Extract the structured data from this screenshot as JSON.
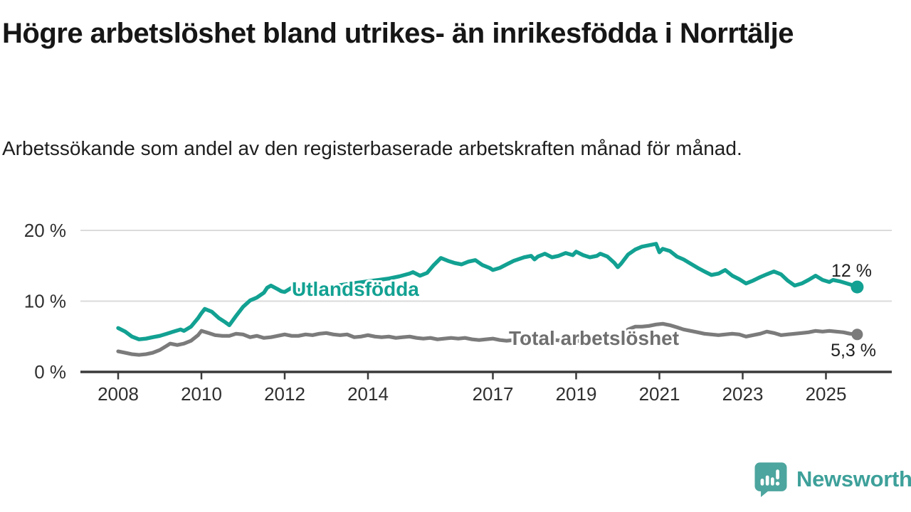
{
  "header": {
    "title": "Högre arbetslöshet bland utrikes- än inrikesfödda i Norrtälje",
    "subtitle": "Arbetssökande som andel av den registerbaserade arbetskraften månad för månad."
  },
  "branding": {
    "logo_text": "Newsworthy",
    "logo_icon": "bar-chart-speech-bubble-icon",
    "icon_color": "#4CA59E",
    "text_color": "#3EA09A"
  },
  "colors": {
    "grid": "#DBDBDB",
    "axis": "#3A3A3A",
    "axis_text": "#2F2F2F",
    "title_text": "#161616",
    "subtitle_text": "#1E1E1E"
  },
  "chart_data": {
    "type": "line",
    "x_ticks": [
      2008,
      2010,
      2012,
      2014,
      2017,
      2019,
      2021,
      2023,
      2025
    ],
    "y_ticks": [
      {
        "value": 0,
        "label": "0 %"
      },
      {
        "value": 10,
        "label": "10 %"
      },
      {
        "value": 20,
        "label": "20 %"
      }
    ],
    "ylim": [
      0,
      21
    ],
    "xlim": [
      2007.1,
      2026.6
    ],
    "grid": "horizontal-only",
    "legend_position": "inline-labels",
    "series": [
      {
        "name": "Utlandsfödda",
        "color": "#12A192",
        "label_color": "#12A192",
        "end_label": "12 %",
        "end_value": 12,
        "points": [
          [
            2008.0,
            6.2
          ],
          [
            2008.17,
            5.7
          ],
          [
            2008.33,
            5.0
          ],
          [
            2008.5,
            4.6
          ],
          [
            2008.67,
            4.7
          ],
          [
            2008.83,
            4.9
          ],
          [
            2009.0,
            5.1
          ],
          [
            2009.17,
            5.4
          ],
          [
            2009.33,
            5.7
          ],
          [
            2009.5,
            6.0
          ],
          [
            2009.58,
            5.8
          ],
          [
            2009.75,
            6.4
          ],
          [
            2009.92,
            7.6
          ],
          [
            2010.0,
            8.3
          ],
          [
            2010.08,
            8.9
          ],
          [
            2010.25,
            8.5
          ],
          [
            2010.42,
            7.6
          ],
          [
            2010.58,
            7.0
          ],
          [
            2010.67,
            6.6
          ],
          [
            2010.83,
            7.9
          ],
          [
            2011.0,
            9.2
          ],
          [
            2011.17,
            10.1
          ],
          [
            2011.33,
            10.5
          ],
          [
            2011.5,
            11.2
          ],
          [
            2011.58,
            11.9
          ],
          [
            2011.67,
            12.2
          ],
          [
            2011.83,
            11.7
          ],
          [
            2011.92,
            11.4
          ],
          [
            2012.0,
            11.3
          ],
          [
            2012.17,
            11.9
          ],
          [
            2012.33,
            11.6
          ],
          [
            2012.5,
            11.4
          ],
          [
            2012.75,
            11.7
          ],
          [
            2013.0,
            12.0
          ],
          [
            2013.25,
            12.2
          ],
          [
            2013.5,
            12.4
          ],
          [
            2013.75,
            12.6
          ],
          [
            2014.0,
            12.8
          ],
          [
            2014.25,
            13.0
          ],
          [
            2014.5,
            13.2
          ],
          [
            2014.75,
            13.5
          ],
          [
            2015.0,
            13.9
          ],
          [
            2015.08,
            14.1
          ],
          [
            2015.25,
            13.6
          ],
          [
            2015.42,
            14.0
          ],
          [
            2015.58,
            15.1
          ],
          [
            2015.75,
            16.1
          ],
          [
            2015.92,
            15.7
          ],
          [
            2016.08,
            15.4
          ],
          [
            2016.25,
            15.2
          ],
          [
            2016.42,
            15.6
          ],
          [
            2016.58,
            15.8
          ],
          [
            2016.75,
            15.1
          ],
          [
            2016.92,
            14.7
          ],
          [
            2017.0,
            14.4
          ],
          [
            2017.17,
            14.7
          ],
          [
            2017.33,
            15.2
          ],
          [
            2017.5,
            15.7
          ],
          [
            2017.75,
            16.2
          ],
          [
            2017.92,
            16.4
          ],
          [
            2018.0,
            15.9
          ],
          [
            2018.08,
            16.3
          ],
          [
            2018.25,
            16.7
          ],
          [
            2018.42,
            16.2
          ],
          [
            2018.58,
            16.4
          ],
          [
            2018.75,
            16.8
          ],
          [
            2018.92,
            16.5
          ],
          [
            2019.0,
            17.0
          ],
          [
            2019.17,
            16.5
          ],
          [
            2019.33,
            16.2
          ],
          [
            2019.5,
            16.4
          ],
          [
            2019.58,
            16.7
          ],
          [
            2019.75,
            16.3
          ],
          [
            2019.92,
            15.4
          ],
          [
            2020.0,
            14.8
          ],
          [
            2020.08,
            15.3
          ],
          [
            2020.25,
            16.6
          ],
          [
            2020.42,
            17.3
          ],
          [
            2020.58,
            17.7
          ],
          [
            2020.75,
            17.9
          ],
          [
            2020.92,
            18.1
          ],
          [
            2021.0,
            16.9
          ],
          [
            2021.08,
            17.4
          ],
          [
            2021.25,
            17.1
          ],
          [
            2021.42,
            16.3
          ],
          [
            2021.58,
            15.9
          ],
          [
            2021.75,
            15.3
          ],
          [
            2021.92,
            14.7
          ],
          [
            2022.08,
            14.2
          ],
          [
            2022.25,
            13.7
          ],
          [
            2022.42,
            13.9
          ],
          [
            2022.58,
            14.4
          ],
          [
            2022.75,
            13.6
          ],
          [
            2022.92,
            13.1
          ],
          [
            2023.08,
            12.5
          ],
          [
            2023.25,
            12.9
          ],
          [
            2023.42,
            13.4
          ],
          [
            2023.58,
            13.8
          ],
          [
            2023.75,
            14.2
          ],
          [
            2023.92,
            13.8
          ],
          [
            2024.08,
            12.9
          ],
          [
            2024.25,
            12.2
          ],
          [
            2024.42,
            12.5
          ],
          [
            2024.58,
            13.0
          ],
          [
            2024.75,
            13.6
          ],
          [
            2024.92,
            13.0
          ],
          [
            2025.08,
            12.7
          ],
          [
            2025.17,
            13.0
          ],
          [
            2025.33,
            12.8
          ],
          [
            2025.5,
            12.5
          ],
          [
            2025.67,
            12.2
          ],
          [
            2025.75,
            12.0
          ]
        ]
      },
      {
        "name": "Total arbetslöshet",
        "color": "#7B7B7B",
        "label_color": "#6F6F6F",
        "end_label": "5,3 %",
        "end_value": 5.3,
        "points": [
          [
            2008.0,
            2.9
          ],
          [
            2008.17,
            2.7
          ],
          [
            2008.33,
            2.5
          ],
          [
            2008.5,
            2.4
          ],
          [
            2008.67,
            2.5
          ],
          [
            2008.83,
            2.7
          ],
          [
            2009.0,
            3.1
          ],
          [
            2009.17,
            3.7
          ],
          [
            2009.25,
            4.0
          ],
          [
            2009.42,
            3.8
          ],
          [
            2009.58,
            4.0
          ],
          [
            2009.75,
            4.4
          ],
          [
            2009.92,
            5.2
          ],
          [
            2010.0,
            5.8
          ],
          [
            2010.17,
            5.5
          ],
          [
            2010.33,
            5.2
          ],
          [
            2010.5,
            5.1
          ],
          [
            2010.67,
            5.1
          ],
          [
            2010.83,
            5.4
          ],
          [
            2011.0,
            5.3
          ],
          [
            2011.17,
            4.9
          ],
          [
            2011.33,
            5.1
          ],
          [
            2011.5,
            4.8
          ],
          [
            2011.67,
            4.9
          ],
          [
            2011.83,
            5.1
          ],
          [
            2012.0,
            5.3
          ],
          [
            2012.17,
            5.1
          ],
          [
            2012.33,
            5.1
          ],
          [
            2012.5,
            5.3
          ],
          [
            2012.67,
            5.2
          ],
          [
            2012.83,
            5.4
          ],
          [
            2013.0,
            5.5
          ],
          [
            2013.17,
            5.3
          ],
          [
            2013.33,
            5.2
          ],
          [
            2013.5,
            5.3
          ],
          [
            2013.67,
            4.9
          ],
          [
            2013.83,
            5.0
          ],
          [
            2014.0,
            5.2
          ],
          [
            2014.17,
            5.0
          ],
          [
            2014.33,
            4.9
          ],
          [
            2014.5,
            5.0
          ],
          [
            2014.67,
            4.8
          ],
          [
            2014.83,
            4.9
          ],
          [
            2015.0,
            5.0
          ],
          [
            2015.17,
            4.8
          ],
          [
            2015.33,
            4.7
          ],
          [
            2015.5,
            4.8
          ],
          [
            2015.67,
            4.6
          ],
          [
            2015.83,
            4.7
          ],
          [
            2016.0,
            4.8
          ],
          [
            2016.17,
            4.7
          ],
          [
            2016.33,
            4.8
          ],
          [
            2016.5,
            4.6
          ],
          [
            2016.67,
            4.5
          ],
          [
            2016.83,
            4.6
          ],
          [
            2017.0,
            4.7
          ],
          [
            2017.17,
            4.5
          ],
          [
            2017.33,
            4.4
          ],
          [
            2017.5,
            4.5
          ],
          [
            2017.67,
            4.6
          ],
          [
            2017.83,
            4.5
          ],
          [
            2018.0,
            4.6
          ],
          [
            2018.17,
            4.5
          ],
          [
            2018.33,
            4.4
          ],
          [
            2018.5,
            4.5
          ],
          [
            2018.67,
            4.4
          ],
          [
            2018.83,
            4.3
          ],
          [
            2019.0,
            4.4
          ],
          [
            2019.17,
            4.3
          ],
          [
            2019.33,
            4.4
          ],
          [
            2019.5,
            4.3
          ],
          [
            2019.67,
            4.4
          ],
          [
            2019.83,
            4.4
          ],
          [
            2019.92,
            4.6
          ],
          [
            2020.08,
            5.2
          ],
          [
            2020.25,
            6.0
          ],
          [
            2020.42,
            6.4
          ],
          [
            2020.58,
            6.4
          ],
          [
            2020.75,
            6.5
          ],
          [
            2020.92,
            6.7
          ],
          [
            2021.08,
            6.8
          ],
          [
            2021.25,
            6.6
          ],
          [
            2021.42,
            6.3
          ],
          [
            2021.58,
            6.0
          ],
          [
            2021.75,
            5.8
          ],
          [
            2021.92,
            5.6
          ],
          [
            2022.08,
            5.4
          ],
          [
            2022.25,
            5.3
          ],
          [
            2022.42,
            5.2
          ],
          [
            2022.58,
            5.3
          ],
          [
            2022.75,
            5.4
          ],
          [
            2022.92,
            5.3
          ],
          [
            2023.08,
            5.0
          ],
          [
            2023.25,
            5.2
          ],
          [
            2023.42,
            5.4
          ],
          [
            2023.58,
            5.7
          ],
          [
            2023.75,
            5.5
          ],
          [
            2023.92,
            5.2
          ],
          [
            2024.08,
            5.3
          ],
          [
            2024.25,
            5.4
          ],
          [
            2024.42,
            5.5
          ],
          [
            2024.58,
            5.6
          ],
          [
            2024.75,
            5.8
          ],
          [
            2024.92,
            5.7
          ],
          [
            2025.08,
            5.8
          ],
          [
            2025.25,
            5.7
          ],
          [
            2025.42,
            5.6
          ],
          [
            2025.58,
            5.4
          ],
          [
            2025.75,
            5.3
          ]
        ]
      }
    ]
  }
}
